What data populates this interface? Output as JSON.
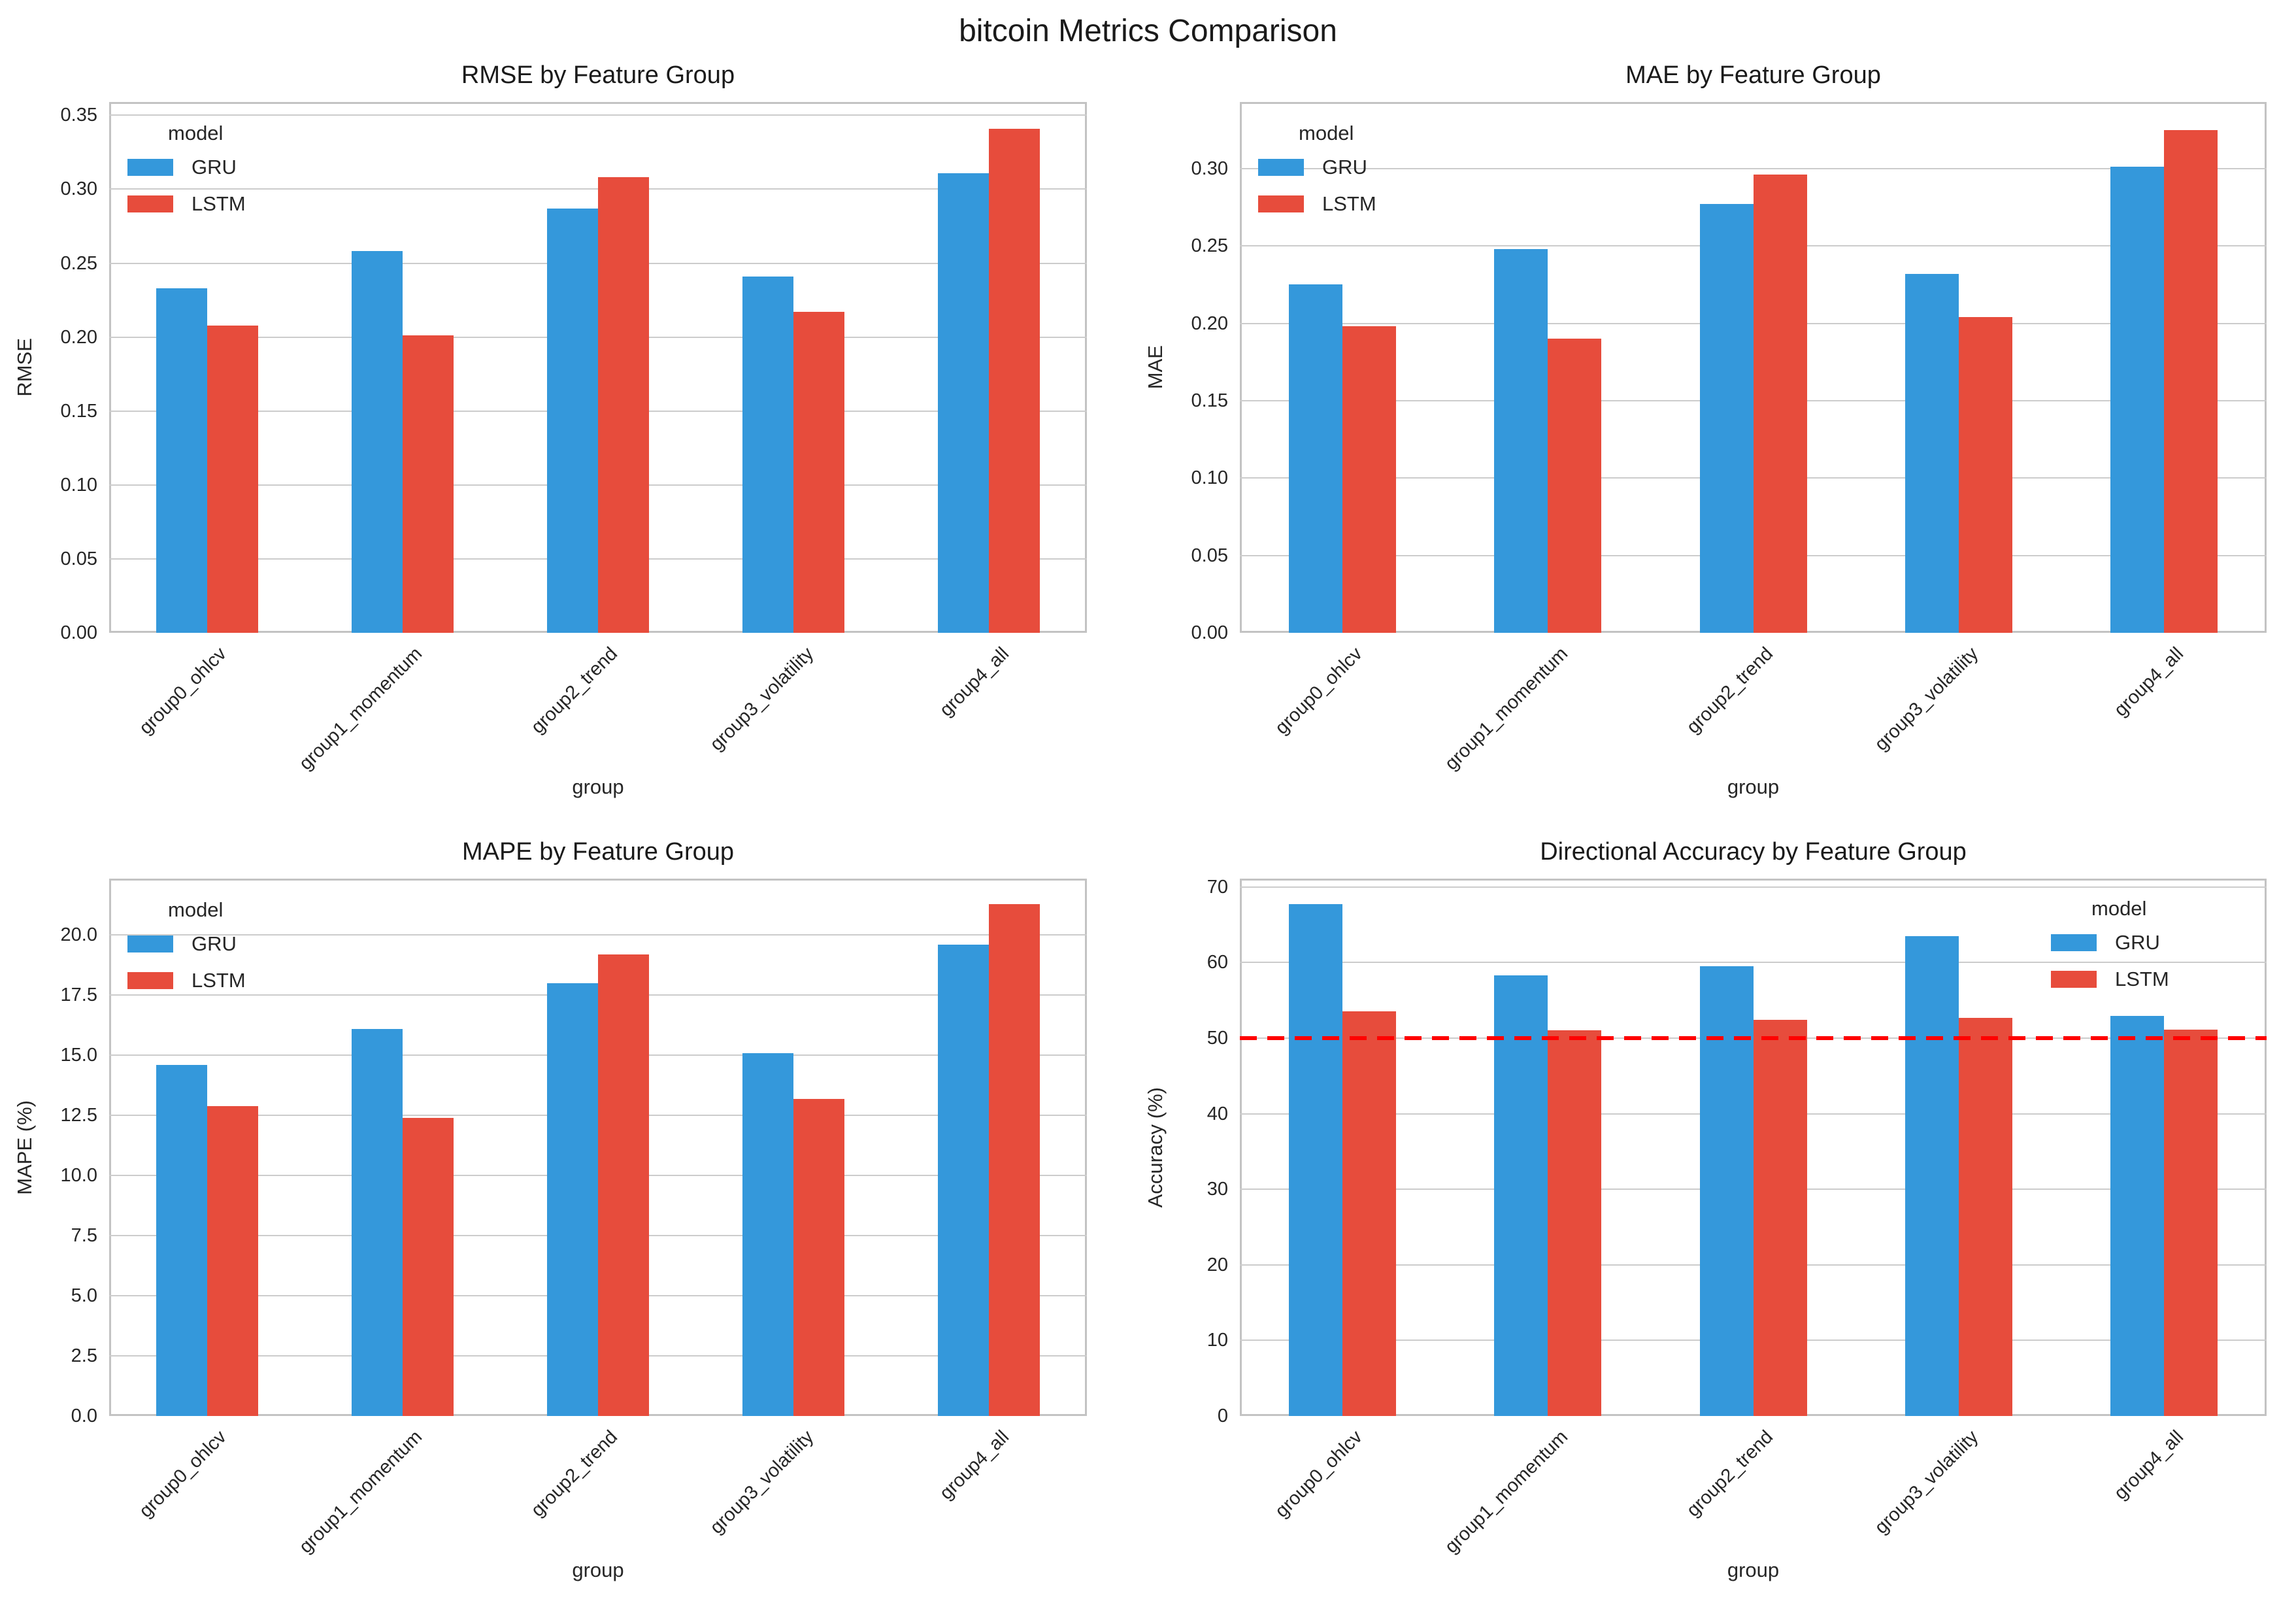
{
  "figure": {
    "suptitle": "bitcoin Metrics Comparison"
  },
  "colors": {
    "gru": "#3498db",
    "lstm": "#e74c3c",
    "reference_line": "#ff0000",
    "grid": "#cccccc",
    "spine": "#c3c3c3",
    "text": "#262626"
  },
  "legend": {
    "title": "model",
    "entries": [
      {
        "label": "GRU",
        "color": "#3498db"
      },
      {
        "label": "LSTM",
        "color": "#e74c3c"
      }
    ]
  },
  "categories": [
    "group0_ohlcv",
    "group1_momentum",
    "group2_trend",
    "group3_volatility",
    "group4_all"
  ],
  "chart_data": [
    {
      "type": "bar",
      "title": "RMSE by Feature Group",
      "xlabel": "group",
      "ylabel": "RMSE",
      "categories": [
        "group0_ohlcv",
        "group1_momentum",
        "group2_trend",
        "group3_volatility",
        "group4_all"
      ],
      "series": [
        {
          "name": "GRU",
          "values": [
            0.233,
            0.258,
            0.287,
            0.241,
            0.311
          ]
        },
        {
          "name": "LSTM",
          "values": [
            0.208,
            0.201,
            0.308,
            0.217,
            0.341
          ]
        }
      ],
      "ylim": [
        0,
        0.359
      ],
      "yticks": [
        0.0,
        0.05,
        0.1,
        0.15,
        0.2,
        0.25,
        0.3,
        0.35
      ],
      "ytick_labels": [
        "0.00",
        "0.05",
        "0.10",
        "0.15",
        "0.20",
        "0.25",
        "0.30",
        "0.35"
      ],
      "grid": true,
      "legend_position": "upper left"
    },
    {
      "type": "bar",
      "title": "MAE by Feature Group",
      "xlabel": "group",
      "ylabel": "MAE",
      "categories": [
        "group0_ohlcv",
        "group1_momentum",
        "group2_trend",
        "group3_volatility",
        "group4_all"
      ],
      "series": [
        {
          "name": "GRU",
          "values": [
            0.225,
            0.248,
            0.277,
            0.232,
            0.301
          ]
        },
        {
          "name": "LSTM",
          "values": [
            0.198,
            0.19,
            0.296,
            0.204,
            0.325
          ]
        }
      ],
      "ylim": [
        0,
        0.343
      ],
      "yticks": [
        0.0,
        0.05,
        0.1,
        0.15,
        0.2,
        0.25,
        0.3
      ],
      "ytick_labels": [
        "0.00",
        "0.05",
        "0.10",
        "0.15",
        "0.20",
        "0.25",
        "0.30"
      ],
      "grid": true,
      "legend_position": "upper left"
    },
    {
      "type": "bar",
      "title": "MAPE by Feature Group",
      "xlabel": "group",
      "ylabel": "MAPE (%)",
      "categories": [
        "group0_ohlcv",
        "group1_momentum",
        "group2_trend",
        "group3_volatility",
        "group4_all"
      ],
      "series": [
        {
          "name": "GRU",
          "values": [
            14.6,
            16.1,
            18.0,
            15.1,
            19.6
          ]
        },
        {
          "name": "LSTM",
          "values": [
            12.9,
            12.4,
            19.2,
            13.2,
            21.3
          ]
        }
      ],
      "ylim": [
        0,
        22.35
      ],
      "yticks": [
        0.0,
        2.5,
        5.0,
        7.5,
        10.0,
        12.5,
        15.0,
        17.5,
        20.0
      ],
      "ytick_labels": [
        "0.0",
        "2.5",
        "5.0",
        "7.5",
        "10.0",
        "12.5",
        "15.0",
        "17.5",
        "20.0"
      ],
      "grid": true,
      "legend_position": "upper left"
    },
    {
      "type": "bar",
      "title": "Directional Accuracy by Feature Group",
      "xlabel": "group",
      "ylabel": "Accuracy (%)",
      "categories": [
        "group0_ohlcv",
        "group1_momentum",
        "group2_trend",
        "group3_volatility",
        "group4_all"
      ],
      "series": [
        {
          "name": "GRU",
          "values": [
            67.7,
            58.3,
            59.5,
            63.5,
            52.9
          ]
        },
        {
          "name": "LSTM",
          "values": [
            53.5,
            51.0,
            52.4,
            52.7,
            51.1
          ]
        }
      ],
      "ylim": [
        0,
        71.1
      ],
      "yticks": [
        0,
        10,
        20,
        30,
        40,
        50,
        60,
        70
      ],
      "ytick_labels": [
        "0",
        "10",
        "20",
        "30",
        "40",
        "50",
        "60",
        "70"
      ],
      "grid": true,
      "legend_position": "upper right",
      "reference_line": {
        "y": 50,
        "color": "#ff0000",
        "style": "dashed"
      }
    }
  ]
}
